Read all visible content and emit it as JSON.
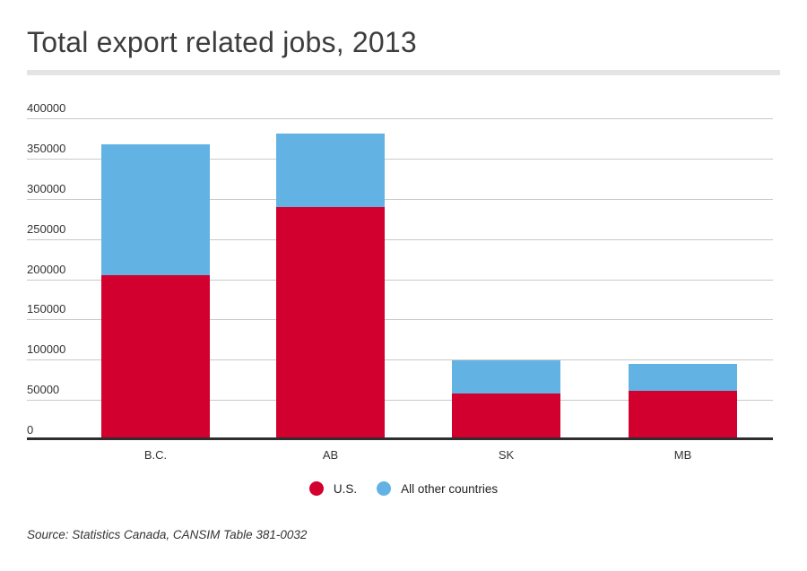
{
  "title": "Total export related jobs, 2013",
  "source_note": "Source: Statistics Canada, CANSIM Table 381-0032",
  "chart_data": {
    "type": "bar",
    "stacked": true,
    "title": "Total export related jobs, 2013",
    "categories": [
      "B.C.",
      "AB",
      "SK",
      "MB"
    ],
    "series": [
      {
        "name": "U.S.",
        "color": "#d2002e",
        "values": [
          205000,
          290000,
          58000,
          61000
        ]
      },
      {
        "name": "All other countries",
        "color": "#62b3e4",
        "values": [
          163000,
          91000,
          41000,
          33000
        ]
      }
    ],
    "xlabel": "",
    "ylabel": "",
    "ylim": [
      0,
      400000
    ],
    "y_ticks": [
      0,
      50000,
      100000,
      150000,
      200000,
      250000,
      300000,
      350000,
      400000
    ],
    "grid": true,
    "legend_position": "bottom",
    "colors": {
      "grid": "#c9c9c9",
      "axis": "#2e2e2e",
      "text": "#333333",
      "title": "#3d3d3d"
    }
  }
}
